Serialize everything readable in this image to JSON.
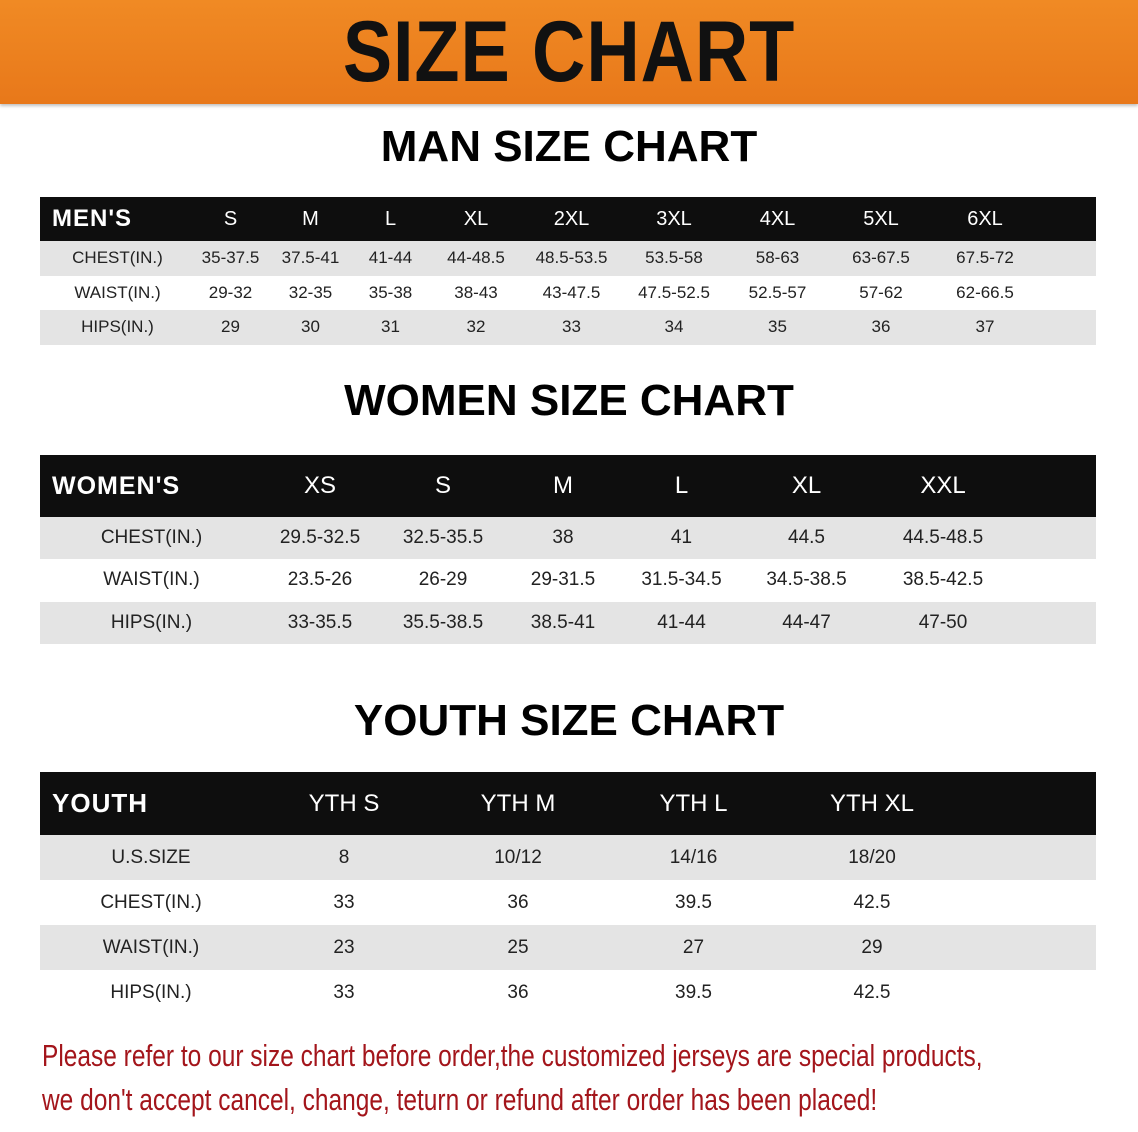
{
  "banner": {
    "title": "SIZE CHART",
    "color": "#ec801f"
  },
  "men": {
    "title": "MAN SIZE CHART",
    "header": [
      "MEN'S",
      "S",
      "M",
      "L",
      "XL",
      "2XL",
      "3XL",
      "4XL",
      "5XL",
      "6XL"
    ],
    "rows": [
      [
        "CHEST(IN.)",
        "35-37.5",
        "37.5-41",
        "41-44",
        "44-48.5",
        "48.5-53.5",
        "53.5-58",
        "58-63",
        "63-67.5",
        "67.5-72"
      ],
      [
        "WAIST(IN.)",
        "29-32",
        "32-35",
        "35-38",
        "38-43",
        "43-47.5",
        "47.5-52.5",
        "52.5-57",
        "57-62",
        "62-66.5"
      ],
      [
        "HIPS(IN.)",
        "29",
        "30",
        "31",
        "32",
        "33",
        "34",
        "35",
        "36",
        "37"
      ]
    ]
  },
  "women": {
    "title": "WOMEN SIZE CHART",
    "header": [
      "WOMEN'S",
      "XS",
      "S",
      "M",
      "L",
      "XL",
      "XXL"
    ],
    "rows": [
      [
        "CHEST(IN.)",
        "29.5-32.5",
        "32.5-35.5",
        "38",
        "41",
        "44.5",
        "44.5-48.5"
      ],
      [
        "WAIST(IN.)",
        "23.5-26",
        "26-29",
        "29-31.5",
        "31.5-34.5",
        "34.5-38.5",
        "38.5-42.5"
      ],
      [
        "HIPS(IN.)",
        "33-35.5",
        "35.5-38.5",
        "38.5-41",
        "41-44",
        "44-47",
        "47-50"
      ]
    ]
  },
  "youth": {
    "title": "YOUTH SIZE CHART",
    "header": [
      "YOUTH",
      "YTH S",
      "YTH M",
      "YTH L",
      "YTH XL"
    ],
    "rows": [
      [
        "U.S.SIZE",
        "8",
        "10/12",
        "14/16",
        "18/20"
      ],
      [
        "CHEST(IN.)",
        "33",
        "36",
        "39.5",
        "42.5"
      ],
      [
        "WAIST(IN.)",
        "23",
        "25",
        "27",
        "29"
      ],
      [
        "HIPS(IN.)",
        "33",
        "36",
        "39.5",
        "42.5"
      ]
    ]
  },
  "note": {
    "line1": "Please refer to our size chart before order,the customized jerseys are special products,",
    "line2": "we don't accept cancel, change, teturn or refund after order has been placed!",
    "color": "#a3151b"
  }
}
